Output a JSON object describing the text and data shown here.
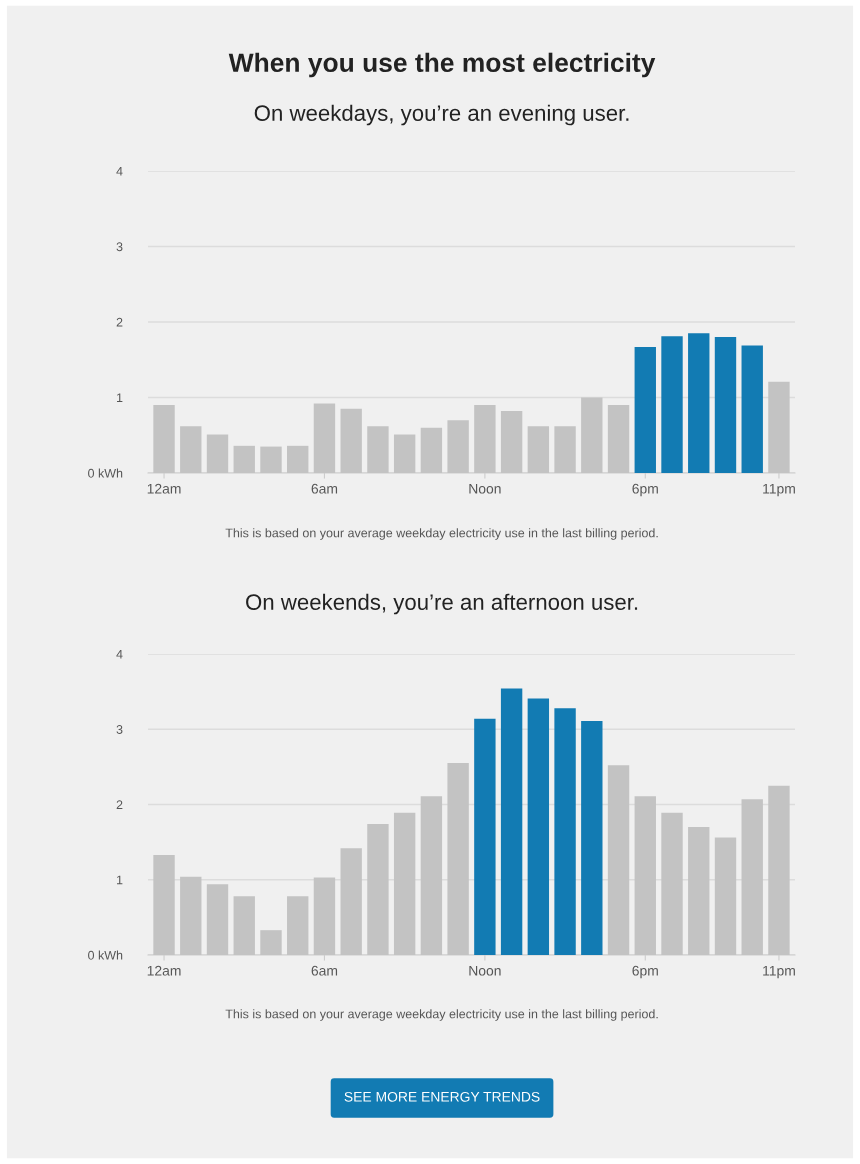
{
  "chart_data": [
    {
      "type": "bar",
      "title": "When you use the most electricity",
      "subtitle": "On weekdays, you’re an evening user.",
      "categories": [
        "12am",
        null,
        null,
        null,
        null,
        null,
        "6am",
        null,
        null,
        null,
        null,
        null,
        "Noon",
        null,
        null,
        null,
        null,
        null,
        "6pm",
        null,
        null,
        null,
        null,
        "11pm"
      ],
      "values": [
        0.9,
        0.62,
        0.51,
        0.36,
        0.35,
        0.36,
        0.92,
        0.85,
        0.62,
        0.51,
        0.6,
        0.7,
        0.9,
        0.82,
        0.62,
        0.62,
        1.0,
        0.9,
        1.67,
        1.81,
        1.85,
        1.8,
        1.69,
        1.21
      ],
      "colors": [
        "#c3c3c3",
        "#c3c3c3",
        "#c3c3c3",
        "#c3c3c3",
        "#c3c3c3",
        "#c3c3c3",
        "#c3c3c3",
        "#c3c3c3",
        "#c3c3c3",
        "#c3c3c3",
        "#c3c3c3",
        "#c3c3c3",
        "#c3c3c3",
        "#c3c3c3",
        "#c3c3c3",
        "#c3c3c3",
        "#c3c3c3",
        "#c3c3c3",
        "#127bb3",
        "#127bb3",
        "#127bb3",
        "#127bb3",
        "#127bb3",
        "#c3c3c3"
      ],
      "ylim": [
        0,
        4
      ],
      "yticks": [
        {
          "value": 0,
          "label": "0 kWh"
        },
        1,
        2,
        3,
        4
      ],
      "grid": "y",
      "annotations": [
        "This is based on your average weekday electricity use in the last billing period."
      ]
    },
    {
      "type": "bar",
      "title": "On weekends, you’re an afternoon user.",
      "categories": [
        "12am",
        null,
        null,
        null,
        null,
        null,
        "6am",
        null,
        null,
        null,
        null,
        null,
        "Noon",
        null,
        null,
        null,
        null,
        null,
        "6pm",
        null,
        null,
        null,
        null,
        "11pm"
      ],
      "values": [
        1.33,
        1.04,
        0.94,
        0.78,
        0.33,
        0.78,
        1.03,
        1.42,
        1.74,
        1.89,
        2.11,
        2.55,
        3.14,
        3.54,
        3.41,
        3.28,
        3.11,
        2.52,
        2.11,
        1.89,
        1.7,
        1.56,
        2.07,
        2.25
      ],
      "colors": [
        "#c3c3c3",
        "#c3c3c3",
        "#c3c3c3",
        "#c3c3c3",
        "#c3c3c3",
        "#c3c3c3",
        "#c3c3c3",
        "#c3c3c3",
        "#c3c3c3",
        "#c3c3c3",
        "#c3c3c3",
        "#c3c3c3",
        "#127bb3",
        "#127bb3",
        "#127bb3",
        "#127bb3",
        "#127bb3",
        "#c3c3c3",
        "#c3c3c3",
        "#c3c3c3",
        "#c3c3c3",
        "#c3c3c3",
        "#c3c3c3",
        "#c3c3c3"
      ],
      "ylim": [
        0,
        4
      ],
      "yticks": [
        {
          "value": 0,
          "label": "0 kWh"
        },
        1,
        2,
        3,
        4
      ],
      "grid": "y",
      "annotations": [
        "This is based on your average weekday electricity use in the last billing period.",
        "SEE MORE ENERGY TRENDS"
      ]
    }
  ]
}
